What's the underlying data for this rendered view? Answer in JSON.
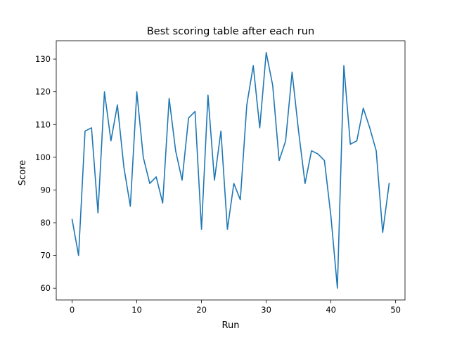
{
  "chart_data": {
    "type": "line",
    "title": "Best scoring table after each run",
    "xlabel": "Run",
    "ylabel": "Score",
    "xlim": [
      -2.45,
      51.45
    ],
    "ylim": [
      56.4,
      135.6
    ],
    "xticks": [
      0,
      10,
      20,
      30,
      40,
      50
    ],
    "yticks": [
      60,
      70,
      80,
      90,
      100,
      110,
      120,
      130
    ],
    "grid": false,
    "line_color": "#1f77b4",
    "series": [
      {
        "x": [
          0,
          1,
          2,
          3,
          4,
          5,
          6,
          7,
          8,
          9,
          10,
          11,
          12,
          13,
          14,
          15,
          16,
          17,
          18,
          19,
          20,
          21,
          22,
          23,
          24,
          25,
          26,
          27,
          28,
          29,
          30,
          31,
          32,
          33,
          34,
          35,
          36,
          37,
          38,
          39,
          40,
          41,
          42,
          43,
          44,
          45,
          46,
          47,
          48,
          49
        ],
        "values": [
          81,
          70,
          108,
          109,
          83,
          120,
          105,
          116,
          97,
          85,
          120,
          100,
          92,
          94,
          86,
          118,
          102,
          93,
          112,
          114,
          78,
          119,
          93,
          108,
          78,
          92,
          87,
          116,
          128,
          109,
          132,
          122,
          99,
          105,
          126,
          108,
          92,
          102,
          101,
          99,
          82,
          60,
          128,
          104,
          105,
          115,
          109,
          102,
          77,
          92
        ]
      }
    ]
  }
}
